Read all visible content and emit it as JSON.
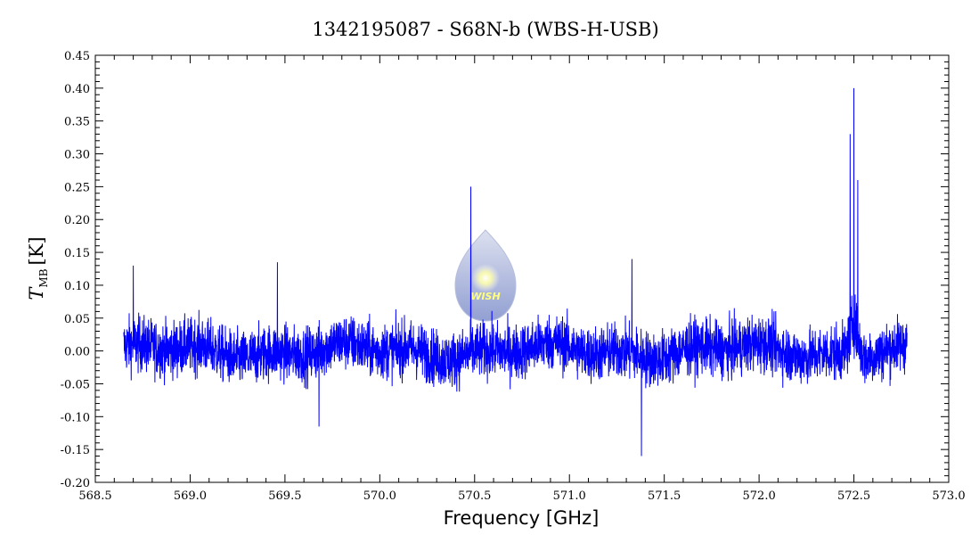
{
  "chart_data": {
    "type": "line",
    "title": "1342195087 - S68N-b (WBS-H-USB)",
    "xlabel": "Frequency [GHz]",
    "ylabel": "T_MB [K]",
    "ylabel_main": "T",
    "ylabel_sub": "MB",
    "ylabel_unit": "[K]",
    "xlim": [
      568.5,
      573.0
    ],
    "ylim": [
      -0.2,
      0.45
    ],
    "x_ticks": [
      "568.5",
      "569.0",
      "569.5",
      "570.0",
      "570.5",
      "571.0",
      "571.5",
      "572.0",
      "572.5",
      "573.0"
    ],
    "y_ticks": [
      "-0.20",
      "-0.15",
      "-0.10",
      "-0.05",
      "0.00",
      "0.05",
      "0.10",
      "0.15",
      "0.20",
      "0.25",
      "0.30",
      "0.35",
      "0.40",
      "0.45"
    ],
    "grid": false,
    "legend": "none",
    "series": [
      {
        "color": "#0000ff",
        "x_range": [
          568.65,
          572.78
        ],
        "baseline": 0.0,
        "noise_rms": 0.03,
        "peaks": [
          {
            "x": 568.7,
            "y": 0.13
          },
          {
            "x": 569.46,
            "y": 0.135
          },
          {
            "x": 569.68,
            "y": -0.115
          },
          {
            "x": 570.48,
            "y": 0.25
          },
          {
            "x": 571.33,
            "y": 0.14
          },
          {
            "x": 571.38,
            "y": -0.16
          },
          {
            "x": 572.48,
            "y": 0.33
          },
          {
            "x": 572.5,
            "y": 0.4
          },
          {
            "x": 572.52,
            "y": 0.26
          }
        ]
      }
    ]
  },
  "watermark": {
    "text": "WISH",
    "colors": {
      "drop_top": "#d7dced",
      "drop_bottom": "#7f8fcb",
      "star": "#ffff66"
    }
  }
}
